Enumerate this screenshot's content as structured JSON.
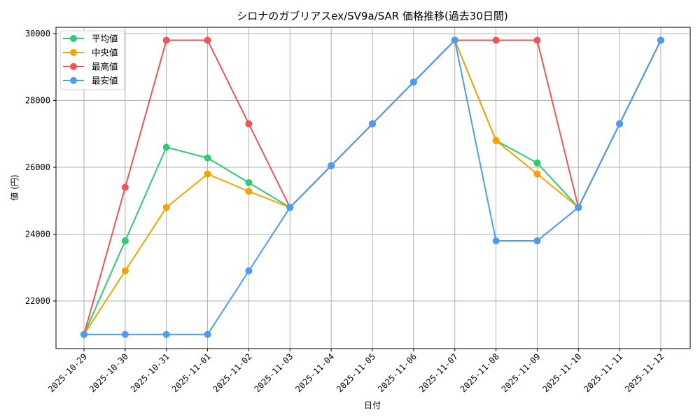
{
  "chart_data": {
    "type": "line",
    "title": "シロナのガブリアスex/SV9a/SAR 価格推移(過去30日間)",
    "xlabel": "日付",
    "ylabel": "値 (円)",
    "categories": [
      "2025-10-29",
      "2025-10-30",
      "2025-10-31",
      "2025-11-01",
      "2025-11-02",
      "2025-11-03",
      "2025-11-04",
      "2025-11-05",
      "2025-11-06",
      "2025-11-07",
      "2025-11-08",
      "2025-11-09",
      "2025-11-10",
      "2025-11-11",
      "2025-11-12"
    ],
    "series": [
      {
        "name": "平均値",
        "color": "#2ecc71",
        "values": [
          21000,
          23800,
          26600,
          26280,
          25540,
          24800,
          26050,
          27300,
          28550,
          29800,
          26800,
          26130,
          24800,
          27300,
          29800
        ]
      },
      {
        "name": "中央値",
        "color": "#f5a300",
        "values": [
          21000,
          22900,
          24800,
          25800,
          25280,
          24800,
          26050,
          27300,
          28550,
          29800,
          26800,
          25800,
          24800,
          27300,
          29800
        ]
      },
      {
        "name": "最高値",
        "color": "#f05454",
        "values": [
          21000,
          25400,
          29800,
          29800,
          27300,
          24800,
          26050,
          27300,
          28550,
          29800,
          29800,
          29800,
          24800,
          27300,
          29800
        ]
      },
      {
        "name": "最安値",
        "color": "#4a9cf5",
        "values": [
          21000,
          21000,
          21000,
          21000,
          22900,
          24800,
          26050,
          27300,
          28550,
          29800,
          23800,
          23800,
          24800,
          27300,
          29800
        ]
      }
    ],
    "yticks": [
      22000,
      24000,
      26000,
      28000,
      30000
    ],
    "ylim": [
      20680,
      30200
    ],
    "grid": true,
    "legend_position": "upper left"
  }
}
